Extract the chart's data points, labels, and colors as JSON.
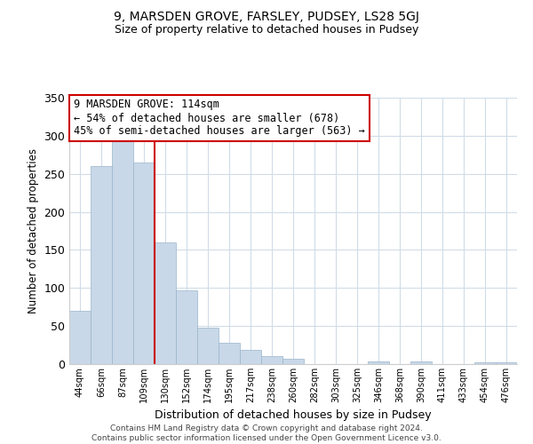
{
  "title": "9, MARSDEN GROVE, FARSLEY, PUDSEY, LS28 5GJ",
  "subtitle": "Size of property relative to detached houses in Pudsey",
  "xlabel": "Distribution of detached houses by size in Pudsey",
  "ylabel": "Number of detached properties",
  "bar_labels": [
    "44sqm",
    "66sqm",
    "87sqm",
    "109sqm",
    "130sqm",
    "152sqm",
    "174sqm",
    "195sqm",
    "217sqm",
    "238sqm",
    "260sqm",
    "282sqm",
    "303sqm",
    "325sqm",
    "346sqm",
    "368sqm",
    "390sqm",
    "411sqm",
    "433sqm",
    "454sqm",
    "476sqm"
  ],
  "bar_heights": [
    70,
    260,
    295,
    265,
    160,
    97,
    48,
    28,
    19,
    10,
    7,
    0,
    0,
    0,
    4,
    0,
    3,
    0,
    0,
    2,
    2
  ],
  "bar_color": "#c8d8e8",
  "bar_edge_color": "#9ab4cc",
  "vline_x": 4.0,
  "vline_color": "#cc0000",
  "annotation_text": "9 MARSDEN GROVE: 114sqm\n← 54% of detached houses are smaller (678)\n45% of semi-detached houses are larger (563) →",
  "annotation_box_edgecolor": "#cc0000",
  "ylim": [
    0,
    350
  ],
  "yticks": [
    0,
    50,
    100,
    150,
    200,
    250,
    300,
    350
  ],
  "footer_line1": "Contains HM Land Registry data © Crown copyright and database right 2024.",
  "footer_line2": "Contains public sector information licensed under the Open Government Licence v3.0.",
  "background_color": "#ffffff",
  "grid_color": "#d0dce8",
  "title_fontsize": 10,
  "subtitle_fontsize": 9
}
